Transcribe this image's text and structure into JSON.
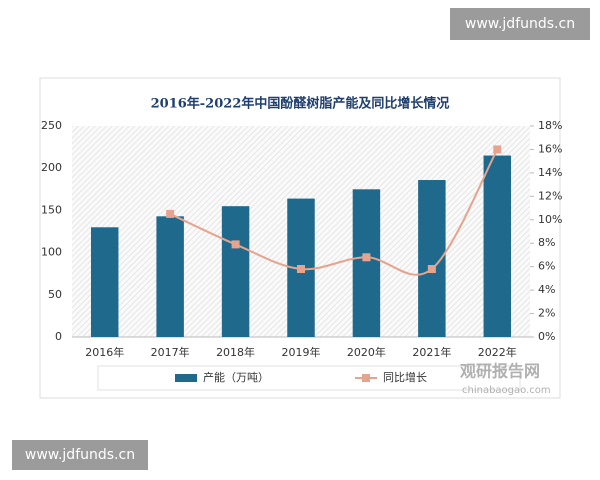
{
  "chart_data": {
    "type": "bar",
    "title": "2016年-2022年中国酚醛树脂产能及同比增长情况",
    "categories": [
      "2016年",
      "2017年",
      "2018年",
      "2019年",
      "2020年",
      "2021年",
      "2022年"
    ],
    "series": [
      {
        "name": "产能（万吨）",
        "type": "bar",
        "color": "#1f6a8c",
        "values": [
          130,
          143,
          155,
          164,
          175,
          186,
          215
        ]
      },
      {
        "name": "同比增长",
        "type": "line",
        "axis": "y2",
        "color": "#e6a48e",
        "values": [
          null,
          10.5,
          7.9,
          5.8,
          6.8,
          5.8,
          16.0
        ]
      }
    ],
    "ylim": [
      0,
      250
    ],
    "yticks": [
      0,
      50,
      100,
      150,
      200,
      250
    ],
    "y2lim": [
      0,
      18
    ],
    "y2ticks": [
      {
        "value": 0,
        "label": "0%"
      },
      {
        "value": 2,
        "label": "2%"
      },
      {
        "value": 4,
        "label": "4%"
      },
      {
        "value": 6,
        "label": "6%"
      },
      {
        "value": 8,
        "label": "8%"
      },
      {
        "value": 10,
        "label": "10%"
      },
      {
        "value": 12,
        "label": "12%"
      },
      {
        "value": 14,
        "label": "14%"
      },
      {
        "value": 16,
        "label": "16%"
      },
      {
        "value": 18,
        "label": "18%"
      }
    ],
    "legend": "bottom"
  },
  "watermarks": [
    "www.jdfunds.cn",
    "www.jdfunds.cn",
    "观研报告网",
    "chinabaogao.com"
  ]
}
